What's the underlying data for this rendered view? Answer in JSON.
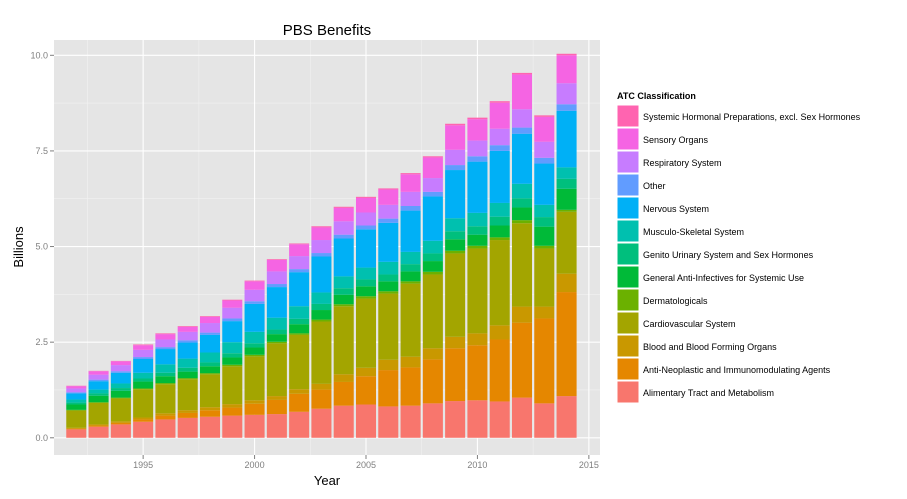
{
  "chart_data": {
    "type": "bar",
    "stacked": true,
    "title": "PBS Benefits",
    "xlabel": "Year",
    "ylabel": "Billions",
    "xlim": [
      1991,
      2015.5
    ],
    "ylim": [
      -0.45,
      10.4
    ],
    "x_ticks": [
      1995,
      2000,
      2005,
      2010,
      2015
    ],
    "y_ticks": [
      0.0,
      2.5,
      5.0,
      7.5,
      10.0
    ],
    "y_tick_labels": [
      "0.0",
      "2.5",
      "5.0",
      "7.5",
      "10.0"
    ],
    "grid": true,
    "legend_position": "right",
    "legend_title": "ATC Classification",
    "categories": [
      1992,
      1993,
      1994,
      1995,
      1996,
      1997,
      1998,
      1999,
      2000,
      2001,
      2002,
      2003,
      2004,
      2005,
      2006,
      2007,
      2008,
      2009,
      2010,
      2011,
      2012,
      2013,
      2014
    ],
    "series": [
      {
        "name": "Alimentary Tract and Metabolism",
        "color": "#F8766D",
        "values": [
          0.22,
          0.29,
          0.35,
          0.42,
          0.48,
          0.52,
          0.55,
          0.58,
          0.6,
          0.62,
          0.68,
          0.76,
          0.84,
          0.87,
          0.82,
          0.84,
          0.9,
          0.96,
          0.98,
          0.95,
          1.05,
          0.9,
          1.09
        ]
      },
      {
        "name": "Anti-Neoplastic and Immunomodulating Agents",
        "color": "#E58700",
        "values": [
          0.02,
          0.03,
          0.04,
          0.06,
          0.1,
          0.13,
          0.17,
          0.21,
          0.29,
          0.37,
          0.47,
          0.5,
          0.62,
          0.74,
          0.95,
          1.0,
          1.15,
          1.38,
          1.44,
          1.62,
          1.96,
          2.22,
          2.72
        ]
      },
      {
        "name": "Blood and Blood Forming Organs",
        "color": "#C99800",
        "values": [
          0.02,
          0.03,
          0.04,
          0.05,
          0.06,
          0.07,
          0.08,
          0.09,
          0.09,
          0.1,
          0.12,
          0.15,
          0.2,
          0.22,
          0.27,
          0.28,
          0.29,
          0.3,
          0.31,
          0.37,
          0.42,
          0.31,
          0.48
        ]
      },
      {
        "name": "Cardiovascular System",
        "color": "#A3A500",
        "values": [
          0.45,
          0.56,
          0.6,
          0.74,
          0.76,
          0.81,
          0.86,
          0.99,
          1.15,
          1.38,
          1.42,
          1.63,
          1.78,
          1.81,
          1.73,
          1.91,
          1.93,
          2.18,
          2.22,
          2.23,
          2.18,
          1.52,
          1.62
        ]
      },
      {
        "name": "Dermatologicals",
        "color": "#6BB100",
        "values": [
          0.02,
          0.02,
          0.02,
          0.02,
          0.03,
          0.03,
          0.03,
          0.04,
          0.04,
          0.04,
          0.04,
          0.05,
          0.05,
          0.06,
          0.06,
          0.06,
          0.07,
          0.07,
          0.07,
          0.07,
          0.08,
          0.07,
          0.05
        ]
      },
      {
        "name": "General Anti-Infectives for Systemic Use",
        "color": "#00BA38",
        "values": [
          0.14,
          0.17,
          0.18,
          0.18,
          0.18,
          0.17,
          0.18,
          0.19,
          0.19,
          0.2,
          0.24,
          0.25,
          0.25,
          0.26,
          0.26,
          0.26,
          0.28,
          0.3,
          0.29,
          0.31,
          0.33,
          0.5,
          0.55
        ]
      },
      {
        "name": "Genito Urinary System and Sex Hormones",
        "color": "#00BF7D",
        "values": [
          0.05,
          0.06,
          0.07,
          0.08,
          0.09,
          0.1,
          0.1,
          0.11,
          0.11,
          0.12,
          0.14,
          0.16,
          0.17,
          0.18,
          0.18,
          0.19,
          0.2,
          0.21,
          0.22,
          0.23,
          0.24,
          0.25,
          0.26
        ]
      },
      {
        "name": "Musculo-Skeletal System",
        "color": "#00C0AF",
        "values": [
          0.08,
          0.1,
          0.12,
          0.15,
          0.22,
          0.24,
          0.26,
          0.29,
          0.3,
          0.31,
          0.33,
          0.3,
          0.31,
          0.31,
          0.33,
          0.32,
          0.33,
          0.34,
          0.35,
          0.36,
          0.38,
          0.32,
          0.3
        ]
      },
      {
        "name": "Nervous System",
        "color": "#00B0F6",
        "values": [
          0.16,
          0.22,
          0.28,
          0.36,
          0.4,
          0.42,
          0.46,
          0.55,
          0.73,
          0.8,
          0.89,
          0.94,
          0.99,
          1.0,
          1.02,
          1.08,
          1.16,
          1.26,
          1.34,
          1.36,
          1.31,
          1.08,
          1.48
        ]
      },
      {
        "name": "Other",
        "color": "#619CFF",
        "values": [
          0.03,
          0.04,
          0.04,
          0.05,
          0.05,
          0.06,
          0.06,
          0.07,
          0.07,
          0.08,
          0.08,
          0.09,
          0.1,
          0.1,
          0.11,
          0.12,
          0.12,
          0.13,
          0.14,
          0.15,
          0.16,
          0.15,
          0.17
        ]
      },
      {
        "name": "Respiratory System",
        "color": "#C77CFF",
        "values": [
          0.1,
          0.13,
          0.16,
          0.19,
          0.2,
          0.22,
          0.25,
          0.28,
          0.3,
          0.33,
          0.34,
          0.34,
          0.35,
          0.34,
          0.36,
          0.37,
          0.36,
          0.4,
          0.41,
          0.43,
          0.48,
          0.42,
          0.55
        ]
      },
      {
        "name": "Sensory Organs",
        "color": "#F564E3",
        "values": [
          0.06,
          0.09,
          0.1,
          0.12,
          0.14,
          0.13,
          0.16,
          0.19,
          0.22,
          0.3,
          0.31,
          0.33,
          0.35,
          0.38,
          0.4,
          0.46,
          0.54,
          0.64,
          0.56,
          0.68,
          0.91,
          0.65,
          0.73
        ]
      },
      {
        "name": "Systemic Hormonal Preparations, excl. Sex Hormones",
        "color": "#FF64B0",
        "values": [
          0.01,
          0.01,
          0.01,
          0.02,
          0.02,
          0.02,
          0.02,
          0.02,
          0.02,
          0.02,
          0.02,
          0.03,
          0.03,
          0.03,
          0.03,
          0.03,
          0.03,
          0.04,
          0.04,
          0.04,
          0.04,
          0.04,
          0.04
        ]
      }
    ]
  }
}
